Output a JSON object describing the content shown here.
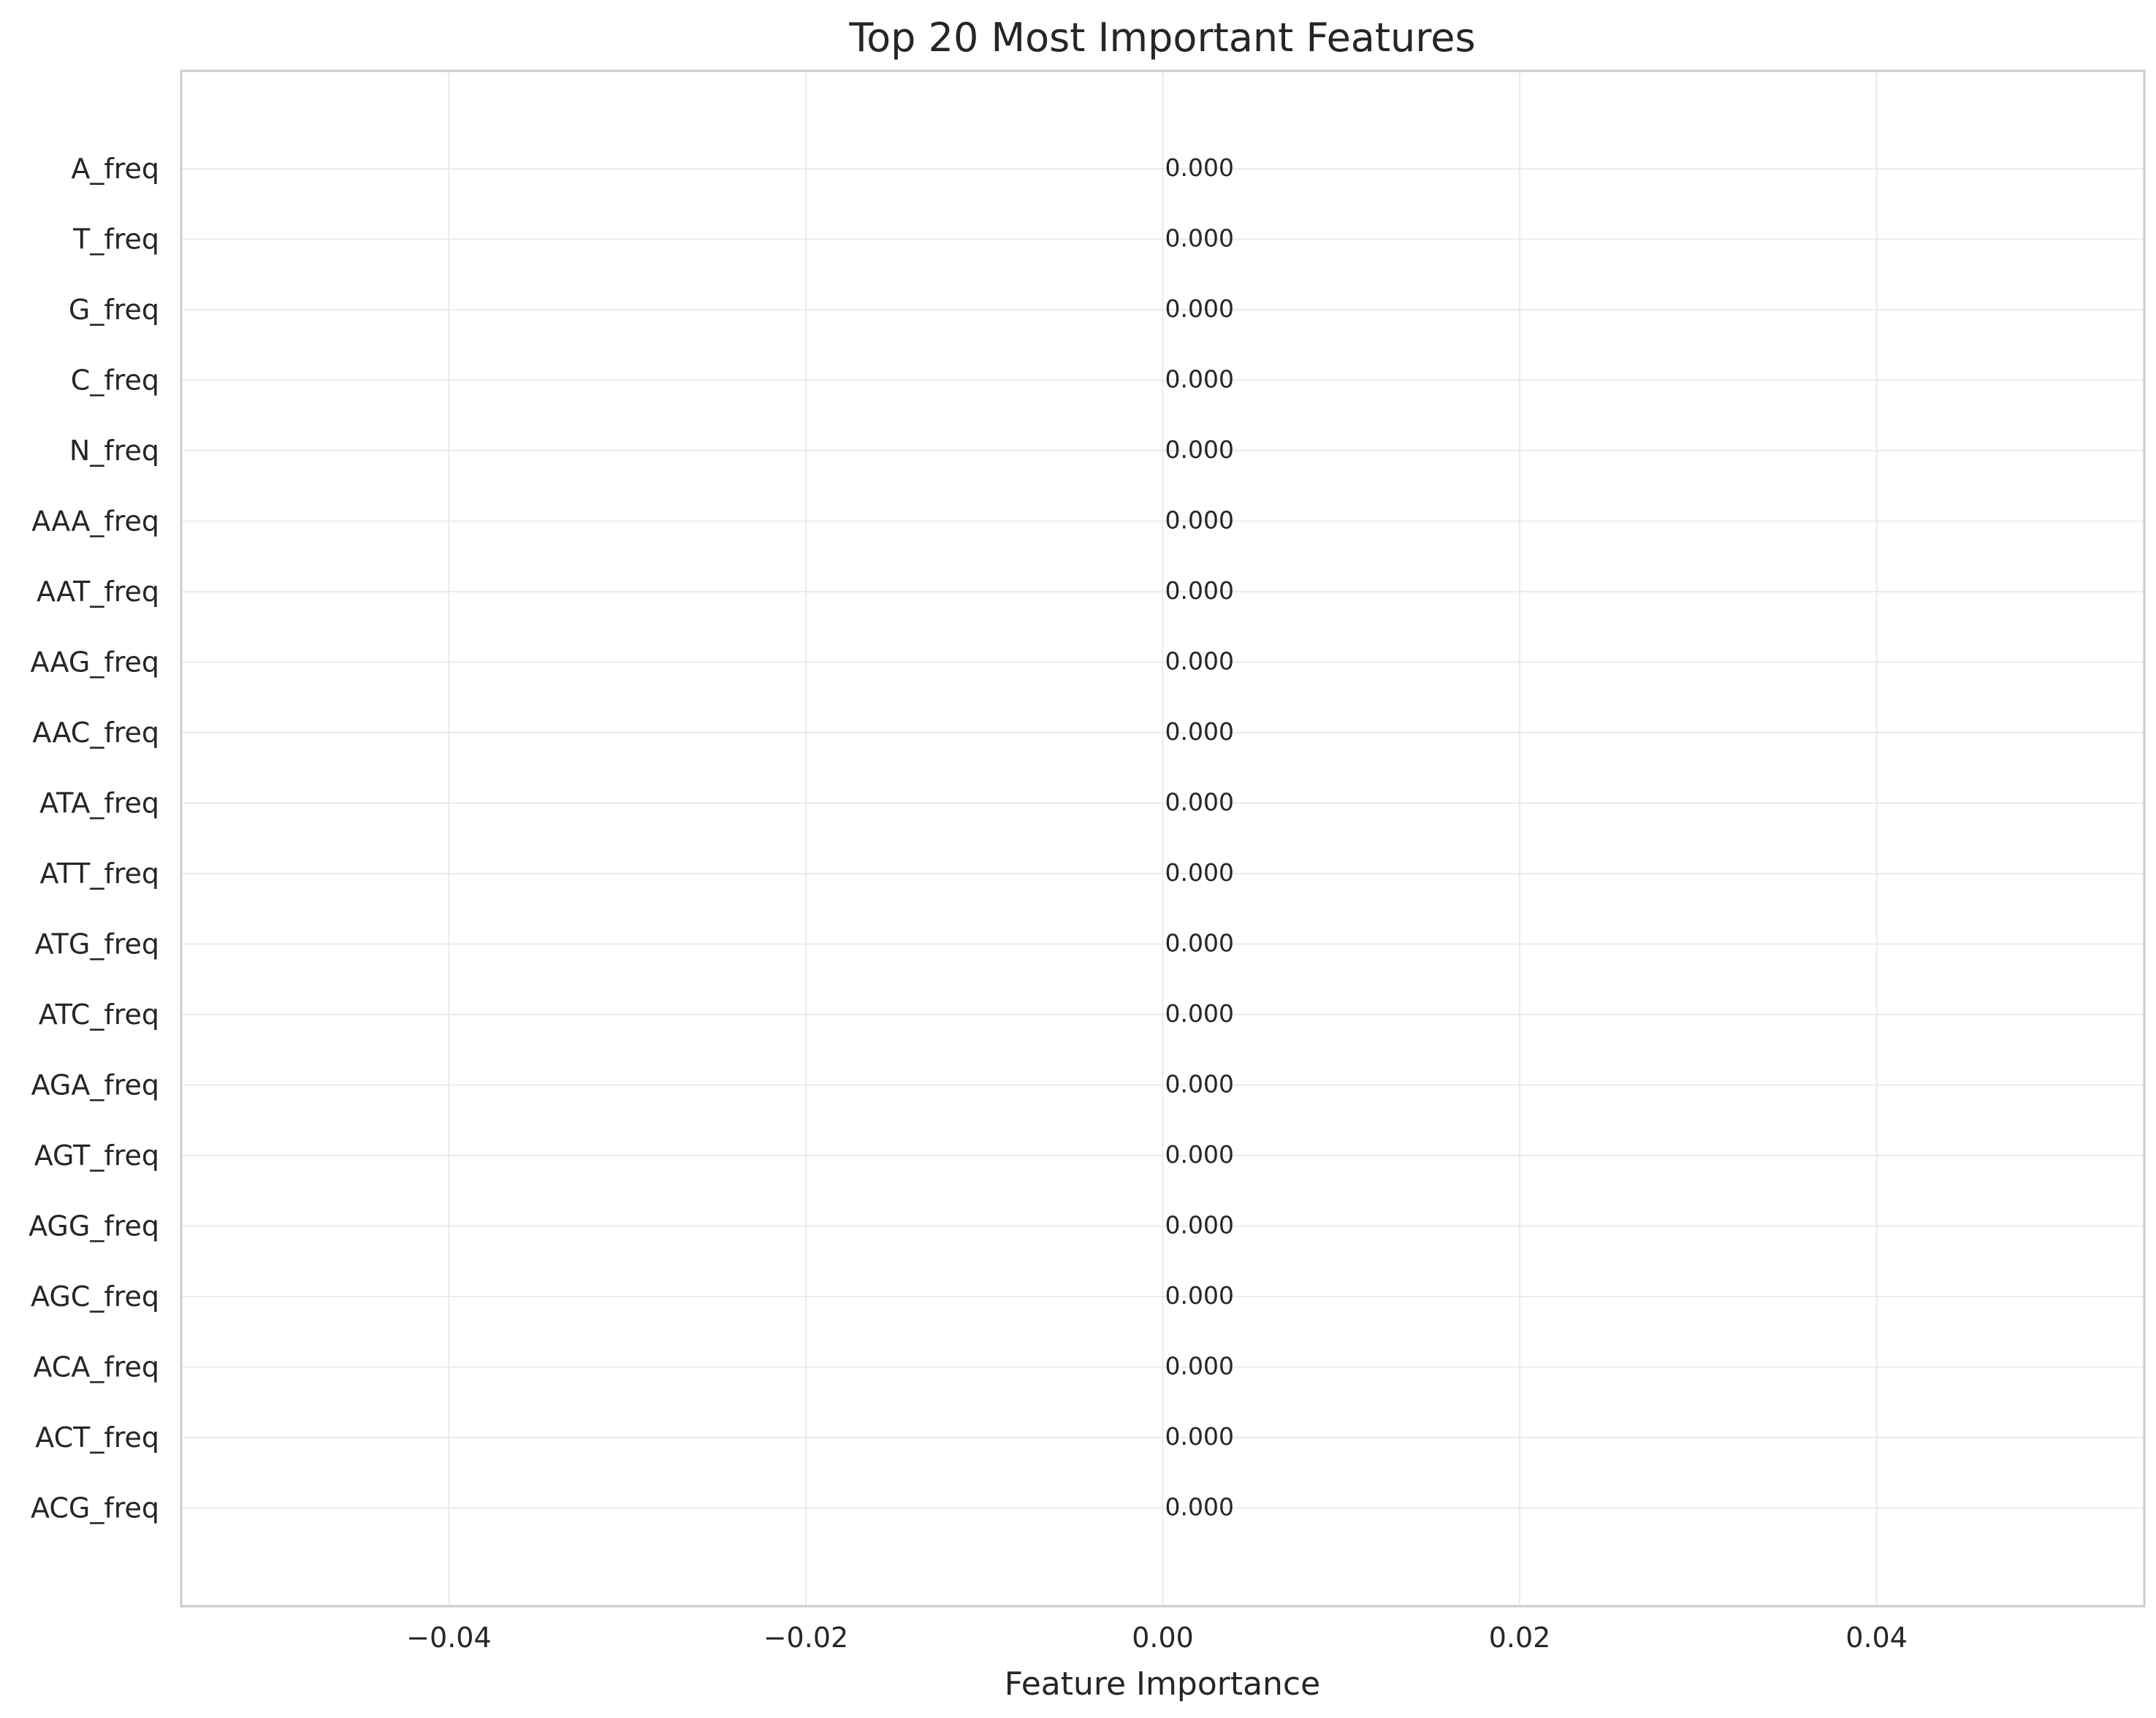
{
  "chart_data": {
    "type": "bar",
    "orientation": "horizontal",
    "title": "Top 20 Most Important Features",
    "xlabel": "Feature Importance",
    "ylabel": "",
    "xlim": [
      -0.055,
      0.055
    ],
    "xticks": [
      -0.04,
      -0.02,
      0.0,
      0.02,
      0.04
    ],
    "xtick_labels": [
      "−0.04",
      "−0.02",
      "0.00",
      "0.02",
      "0.04"
    ],
    "grid": true,
    "categories": [
      "A_freq",
      "T_freq",
      "G_freq",
      "C_freq",
      "N_freq",
      "AAA_freq",
      "AAT_freq",
      "AAG_freq",
      "AAC_freq",
      "ATA_freq",
      "ATT_freq",
      "ATG_freq",
      "ATC_freq",
      "AGA_freq",
      "AGT_freq",
      "AGG_freq",
      "AGC_freq",
      "ACA_freq",
      "ACT_freq",
      "ACG_freq"
    ],
    "values": [
      0,
      0,
      0,
      0,
      0,
      0,
      0,
      0,
      0,
      0,
      0,
      0,
      0,
      0,
      0,
      0,
      0,
      0,
      0,
      0
    ],
    "value_labels": [
      "0.000",
      "0.000",
      "0.000",
      "0.000",
      "0.000",
      "0.000",
      "0.000",
      "0.000",
      "0.000",
      "0.000",
      "0.000",
      "0.000",
      "0.000",
      "0.000",
      "0.000",
      "0.000",
      "0.000",
      "0.000",
      "0.000",
      "0.000"
    ]
  }
}
